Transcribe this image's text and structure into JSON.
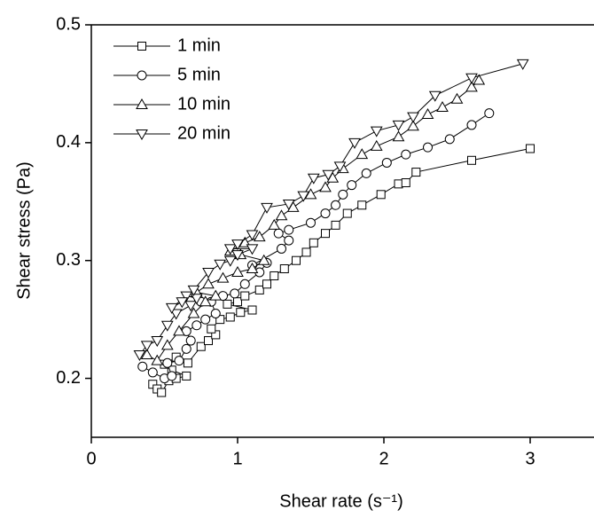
{
  "chart_data": {
    "type": "line",
    "x_label": "Shear rate (s⁻¹)",
    "y_label": "Shear stress (Pa)",
    "xlim": [
      0,
      3.4
    ],
    "ylim": [
      0.15,
      0.5
    ],
    "xticks": [
      0,
      1,
      2,
      3
    ],
    "yticks": [
      0.2,
      0.3,
      0.4,
      0.5
    ],
    "legend": "top-left",
    "series": [
      {
        "name": "1 min",
        "color": "#000000",
        "marker": "square",
        "x": [
          0.42,
          0.45,
          0.48,
          0.53,
          0.58,
          0.65,
          0.55,
          0.5,
          0.58,
          0.66,
          0.75,
          0.8,
          0.85,
          0.82,
          0.88,
          0.95,
          1.02,
          1.1,
          0.93,
          1.0,
          1.05,
          1.15,
          1.2,
          1.25,
          1.32,
          1.4,
          1.47,
          1.52,
          1.6,
          1.67,
          1.75,
          1.85,
          1.98,
          2.1,
          2.15,
          2.22,
          2.6,
          3.0
        ],
        "values": [
          0.195,
          0.191,
          0.188,
          0.198,
          0.2,
          0.202,
          0.207,
          0.212,
          0.218,
          0.213,
          0.227,
          0.232,
          0.237,
          0.242,
          0.25,
          0.252,
          0.256,
          0.258,
          0.263,
          0.265,
          0.27,
          0.275,
          0.28,
          0.287,
          0.293,
          0.3,
          0.307,
          0.315,
          0.323,
          0.33,
          0.34,
          0.347,
          0.356,
          0.365,
          0.366,
          0.375,
          0.385,
          0.395
        ]
      },
      {
        "name": "5 min",
        "color": "#000000",
        "marker": "circle",
        "x": [
          0.35,
          0.42,
          0.5,
          0.55,
          0.52,
          0.6,
          0.65,
          0.68,
          0.65,
          0.72,
          0.78,
          0.85,
          0.82,
          0.75,
          0.9,
          0.98,
          1.05,
          1.15,
          1.2,
          1.1,
          1.3,
          1.35,
          1.28,
          1.35,
          1.5,
          1.6,
          1.67,
          1.72,
          1.78,
          1.88,
          2.02,
          2.15,
          2.3,
          2.45,
          2.6,
          2.72
        ],
        "values": [
          0.21,
          0.205,
          0.2,
          0.202,
          0.213,
          0.215,
          0.225,
          0.232,
          0.24,
          0.245,
          0.25,
          0.255,
          0.265,
          0.265,
          0.27,
          0.272,
          0.28,
          0.29,
          0.298,
          0.296,
          0.31,
          0.317,
          0.323,
          0.326,
          0.332,
          0.34,
          0.347,
          0.356,
          0.364,
          0.374,
          0.383,
          0.39,
          0.396,
          0.403,
          0.415,
          0.425
        ]
      },
      {
        "name": "10 min",
        "color": "#000000",
        "marker": "triangle-up",
        "x": [
          0.38,
          0.45,
          0.52,
          0.6,
          0.7,
          0.78,
          0.85,
          0.72,
          0.8,
          0.9,
          1.0,
          1.1,
          1.18,
          1.02,
          0.95,
          1.05,
          1.15,
          1.25,
          1.3,
          1.38,
          1.5,
          1.6,
          1.65,
          1.72,
          1.85,
          1.95,
          2.1,
          2.2,
          2.3,
          2.4,
          2.5,
          2.6,
          2.65
        ],
        "values": [
          0.22,
          0.215,
          0.228,
          0.24,
          0.255,
          0.265,
          0.27,
          0.273,
          0.28,
          0.285,
          0.29,
          0.293,
          0.3,
          0.305,
          0.308,
          0.315,
          0.32,
          0.33,
          0.338,
          0.345,
          0.356,
          0.362,
          0.37,
          0.378,
          0.39,
          0.397,
          0.405,
          0.414,
          0.424,
          0.43,
          0.437,
          0.447,
          0.453
        ]
      },
      {
        "name": "20 min",
        "color": "#000000",
        "marker": "triangle-down",
        "x": [
          0.33,
          0.38,
          0.45,
          0.52,
          0.58,
          0.68,
          0.72,
          0.65,
          0.62,
          0.55,
          0.7,
          0.8,
          0.88,
          0.95,
          1.0,
          1.1,
          0.95,
          1.0,
          1.1,
          1.2,
          1.35,
          1.45,
          1.52,
          1.62,
          1.7,
          1.8,
          1.95,
          2.1,
          2.2,
          2.35,
          2.6,
          2.95
        ],
        "values": [
          0.22,
          0.228,
          0.232,
          0.245,
          0.255,
          0.262,
          0.268,
          0.27,
          0.265,
          0.26,
          0.275,
          0.29,
          0.297,
          0.3,
          0.305,
          0.31,
          0.31,
          0.314,
          0.322,
          0.345,
          0.348,
          0.355,
          0.37,
          0.373,
          0.38,
          0.4,
          0.41,
          0.415,
          0.422,
          0.44,
          0.455,
          0.467
        ]
      }
    ]
  }
}
